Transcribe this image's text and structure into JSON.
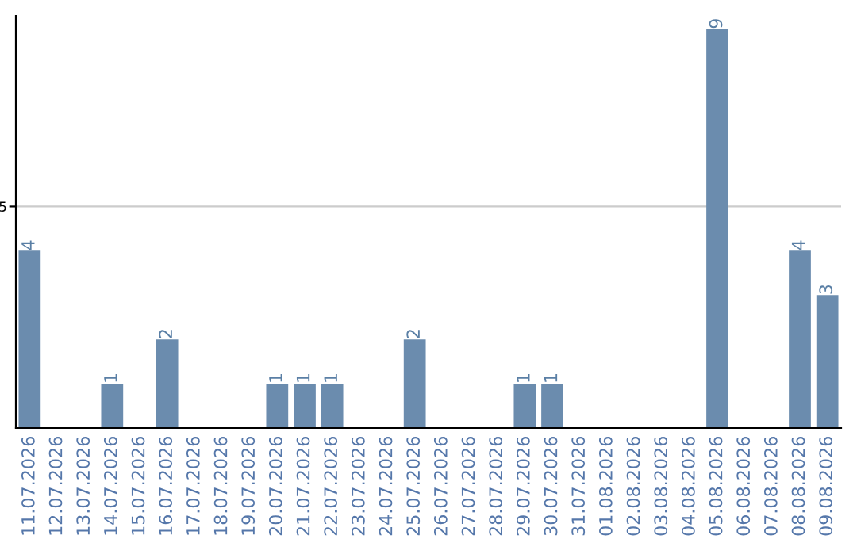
{
  "chart_data": {
    "type": "bar",
    "categories": [
      "11.07.2026",
      "12.07.2026",
      "13.07.2026",
      "14.07.2026",
      "15.07.2026",
      "16.07.2026",
      "17.07.2026",
      "18.07.2026",
      "19.07.2026",
      "20.07.2026",
      "21.07.2026",
      "22.07.2026",
      "23.07.2026",
      "24.07.2026",
      "25.07.2026",
      "26.07.2026",
      "27.07.2026",
      "28.07.2026",
      "29.07.2026",
      "30.07.2026",
      "31.07.2026",
      "01.08.2026",
      "02.08.2026",
      "03.08.2026",
      "04.08.2026",
      "05.08.2026",
      "06.08.2026",
      "07.08.2026",
      "08.08.2026",
      "09.08.2026"
    ],
    "values": [
      4,
      0,
      0,
      1,
      0,
      2,
      0,
      0,
      0,
      1,
      1,
      1,
      0,
      0,
      2,
      0,
      0,
      0,
      1,
      1,
      0,
      0,
      0,
      0,
      0,
      9,
      0,
      0,
      4,
      3
    ],
    "value_labels": [
      "4",
      null,
      null,
      "1",
      null,
      "2",
      null,
      null,
      null,
      "1",
      "1",
      "1",
      null,
      null,
      "2",
      null,
      null,
      null,
      "1",
      "1",
      null,
      null,
      null,
      null,
      null,
      "9",
      null,
      null,
      "4",
      "3"
    ],
    "color": "#6b8cae",
    "ylim": [
      0,
      9.3
    ],
    "yticks": [
      5
    ],
    "grid": "y"
  }
}
